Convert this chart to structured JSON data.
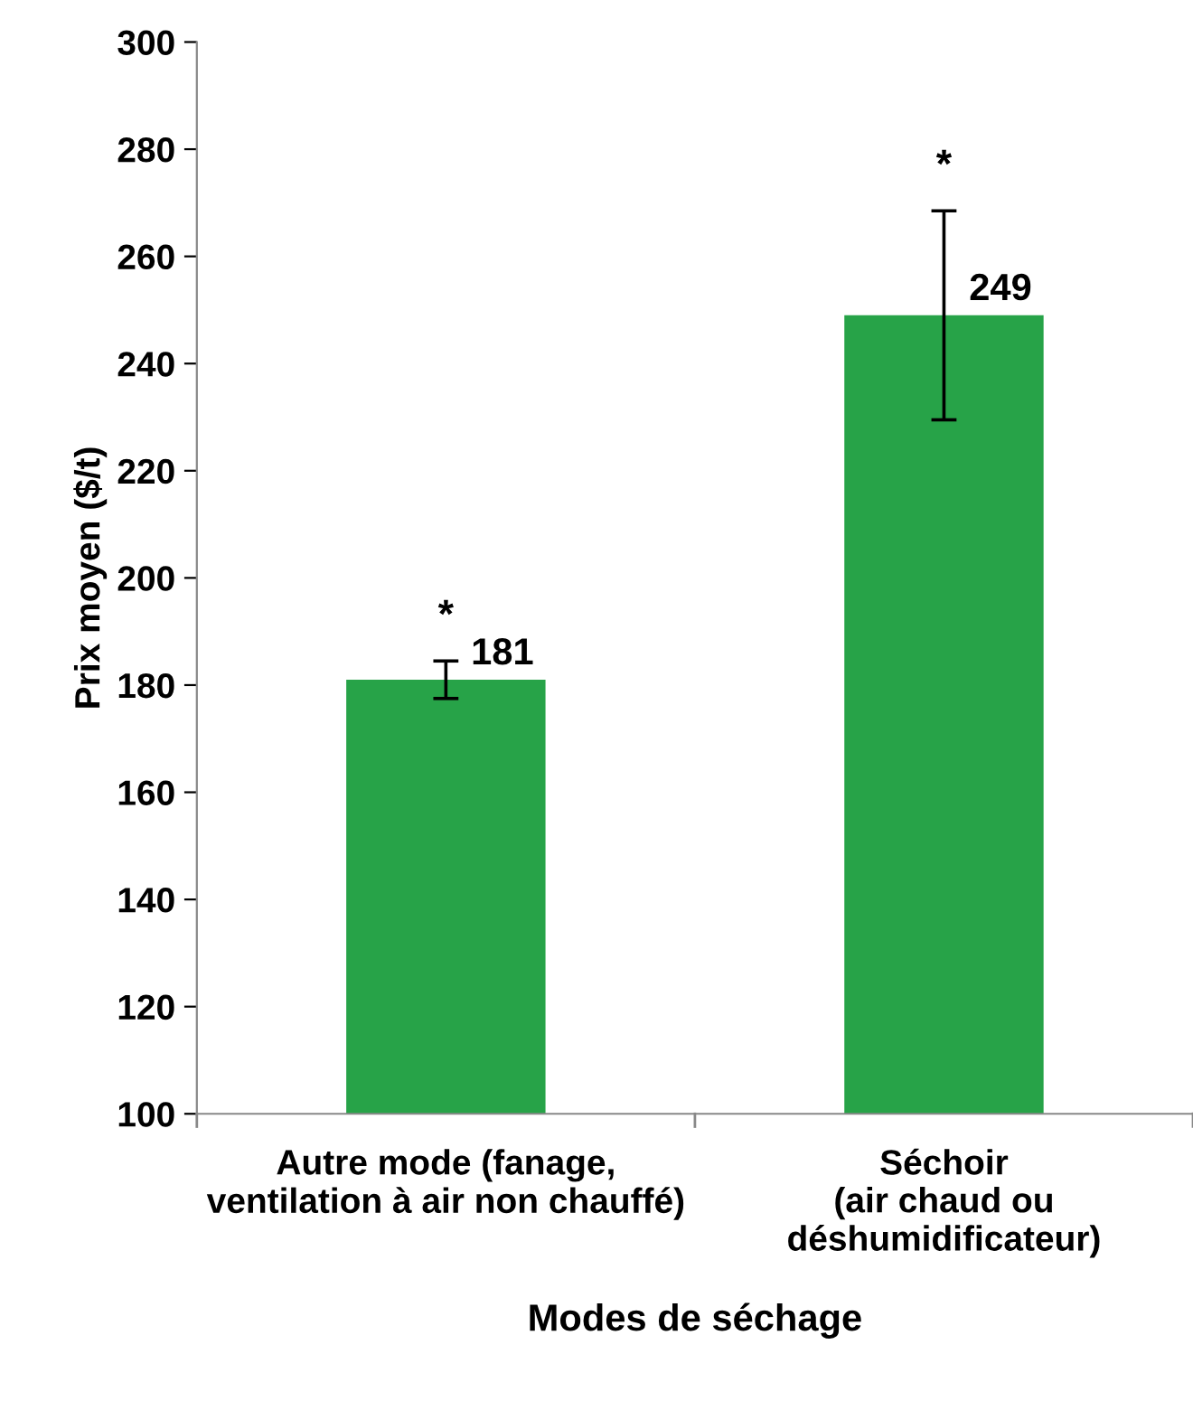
{
  "chart_data": {
    "type": "bar",
    "xlabel": "Modes de séchage",
    "ylabel": "Prix moyen ($/t)",
    "categories": [
      "Autre mode (fanage,\nventilation à air non chauffé)",
      "Séchoir\n(air chaud ou\ndéshumidificateur)"
    ],
    "values": [
      181,
      249
    ],
    "errors": [
      3.5,
      19.5
    ],
    "color": "#27a348",
    "ylim": [
      100,
      300
    ],
    "yticks": [
      100,
      120,
      140,
      160,
      180,
      200,
      220,
      240,
      260,
      280,
      300
    ],
    "data_labels": true,
    "grid": false,
    "annotations": [
      "*",
      "*"
    ]
  }
}
